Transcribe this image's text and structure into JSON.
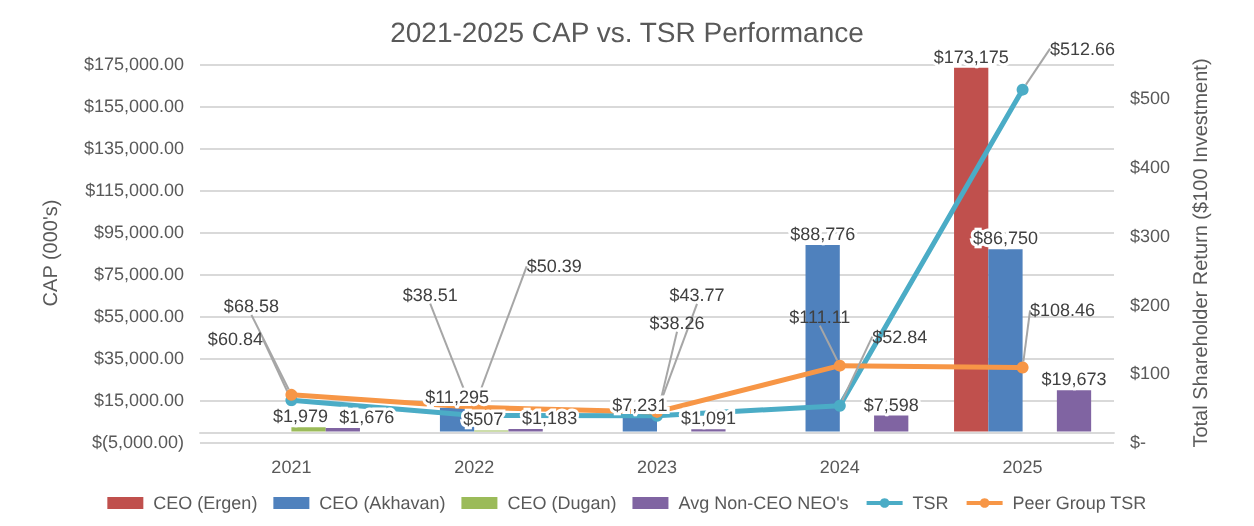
{
  "chart_data": {
    "type": "bar",
    "title": "2021-2025 CAP vs. TSR Performance",
    "ylabel": "CAP (000's)",
    "y2label": "Total Shareholder Return ($100 Investment)",
    "categories": [
      "2021",
      "2022",
      "2023",
      "2024",
      "2025"
    ],
    "series": [
      {
        "name": "CEO (Ergen)",
        "color": "#c0504d",
        "values": [
          null,
          null,
          null,
          null,
          173175
        ],
        "value_labels": [
          null,
          null,
          null,
          null,
          "$173,175"
        ]
      },
      {
        "name": "CEO (Akhavan)",
        "color": "#4f81bd",
        "values": [
          null,
          11295,
          7231,
          88776,
          86750
        ],
        "value_labels": [
          null,
          "$11,295",
          "$7,231",
          "$88,776",
          "$86,750"
        ]
      },
      {
        "name": "CEO (Dugan)",
        "color": "#9bbb59",
        "values": [
          1979,
          507,
          null,
          null,
          null
        ],
        "value_labels": [
          "$1,979",
          "$507",
          null,
          null,
          null
        ]
      },
      {
        "name": "Avg Non-CEO NEO's",
        "color": "#8064a2",
        "values": [
          1676,
          1183,
          1091,
          7598,
          19673
        ],
        "value_labels": [
          "$1,676",
          "$1,183",
          "$1,091",
          "$7,598",
          "$19,673"
        ]
      },
      {
        "name": "TSR",
        "type": "line",
        "axis": "y2",
        "color": "#4bacc6",
        "values": [
          60.84,
          38.51,
          38.26,
          52.84,
          512.66
        ],
        "value_labels": [
          "$60.84",
          "$38.51",
          "$38.26",
          "$52.84",
          "$512.66"
        ]
      },
      {
        "name": "Peer Group TSR",
        "type": "line",
        "axis": "y2",
        "color": "#f79646",
        "values": [
          68.58,
          50.39,
          43.77,
          111.11,
          108.46
        ],
        "value_labels": [
          "$68.58",
          "$50.39",
          "$43.77",
          "$111.11",
          "$108.46"
        ]
      }
    ],
    "ylim": [
      -5000,
      175000
    ],
    "yticks": [
      {
        "value": -5000,
        "label": "$(5,000.00)"
      },
      {
        "value": 15000,
        "label": "$15,000.00"
      },
      {
        "value": 35000,
        "label": "$35,000.00"
      },
      {
        "value": 55000,
        "label": "$55,000.00"
      },
      {
        "value": 75000,
        "label": "$75,000.00"
      },
      {
        "value": 95000,
        "label": "$95,000.00"
      },
      {
        "value": 115000,
        "label": "$115,000.00"
      },
      {
        "value": 135000,
        "label": "$135,000.00"
      },
      {
        "value": 155000,
        "label": "$155,000.00"
      },
      {
        "value": 175000,
        "label": "$175,000.00"
      }
    ],
    "y2lim": [
      0,
      550
    ],
    "y2ticks": [
      {
        "value": 0,
        "label": "$-"
      },
      {
        "value": 100,
        "label": "$100"
      },
      {
        "value": 200,
        "label": "$200"
      },
      {
        "value": 300,
        "label": "$300"
      },
      {
        "value": 400,
        "label": "$400"
      },
      {
        "value": 500,
        "label": "$500"
      }
    ],
    "grid": "y",
    "legend": "bottom",
    "marker": "circle"
  }
}
